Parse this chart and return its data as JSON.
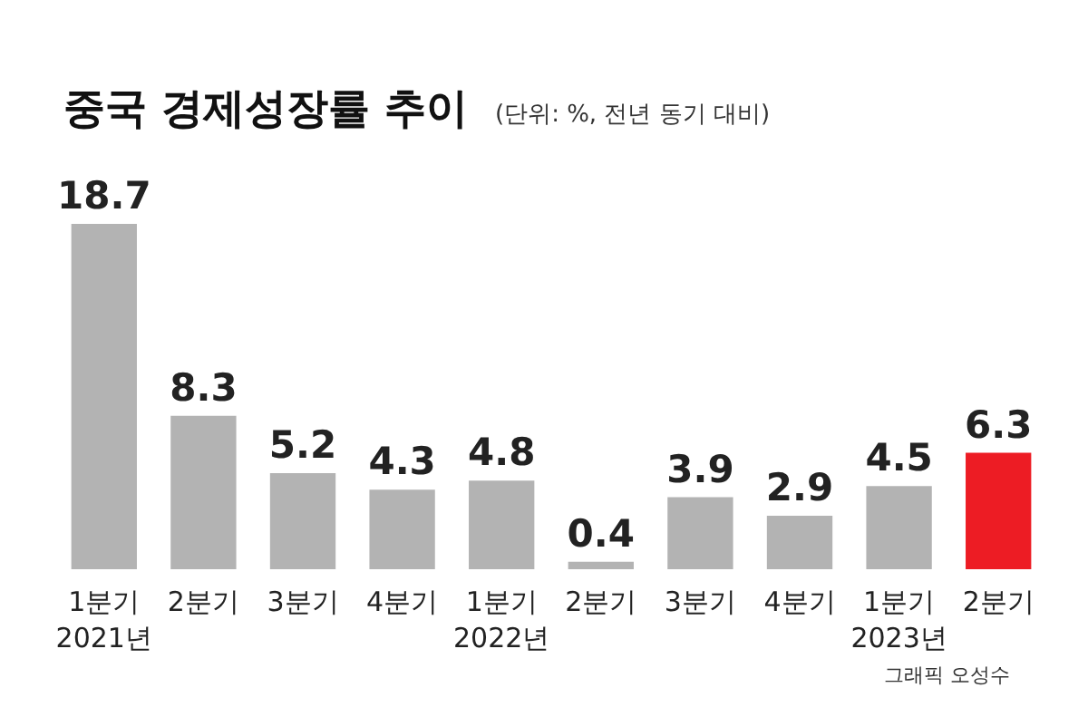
{
  "chart_data": {
    "type": "bar",
    "title": "중국 경제성장률 추이",
    "subtitle": "(단위: %, 전년 동기 대비)",
    "categories": [
      "1분기\n2021년",
      "2분기",
      "3분기",
      "4분기",
      "1분기\n2022년",
      "2분기",
      "3분기",
      "4분기",
      "1분기\n2023년",
      "2분기"
    ],
    "values": [
      18.7,
      8.3,
      5.2,
      4.3,
      4.8,
      0.4,
      3.9,
      2.9,
      4.5,
      6.3
    ],
    "colors": [
      "#b3b3b3",
      "#b3b3b3",
      "#b3b3b3",
      "#b3b3b3",
      "#b3b3b3",
      "#b3b3b3",
      "#b3b3b3",
      "#b3b3b3",
      "#b3b3b3",
      "#ed1c24"
    ],
    "data_labels": true,
    "annotations": [
      "그래픽 오성수"
    ]
  }
}
